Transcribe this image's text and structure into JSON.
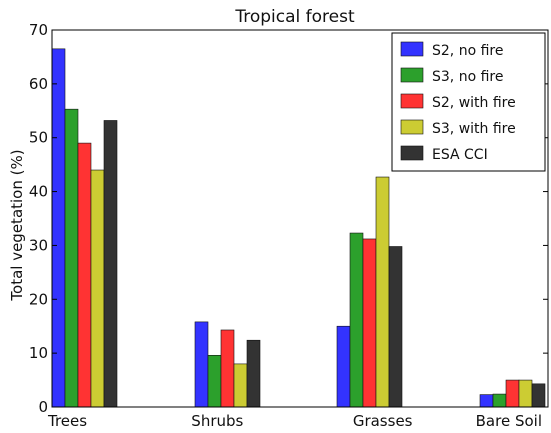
{
  "chart_data": {
    "type": "bar",
    "title": "Tropical forest",
    "xlabel": "",
    "ylabel": "Total vegetation (%)",
    "ylim": [
      0,
      70
    ],
    "yticks": [
      0,
      10,
      20,
      30,
      40,
      50,
      60,
      70
    ],
    "grid": false,
    "legend_position": "top-right",
    "categories": [
      "Trees",
      "Shrubs",
      "Grasses",
      "Bare Soil"
    ],
    "series": [
      {
        "name": "S2, no fire",
        "color": "#3333ff",
        "values": [
          66.5,
          15.8,
          15.0,
          2.3
        ]
      },
      {
        "name": "S3, no fire",
        "color": "#2ca02c",
        "values": [
          55.3,
          9.6,
          32.3,
          2.4
        ]
      },
      {
        "name": "S2, with fire",
        "color": "#ff3333",
        "values": [
          49.0,
          14.3,
          31.2,
          5.0
        ]
      },
      {
        "name": "S3, with fire",
        "color": "#cccc33",
        "values": [
          44.0,
          8.0,
          42.7,
          5.0
        ]
      },
      {
        "name": "ESA CCI",
        "color": "#333333",
        "values": [
          53.2,
          12.4,
          29.8,
          4.3
        ]
      }
    ]
  }
}
